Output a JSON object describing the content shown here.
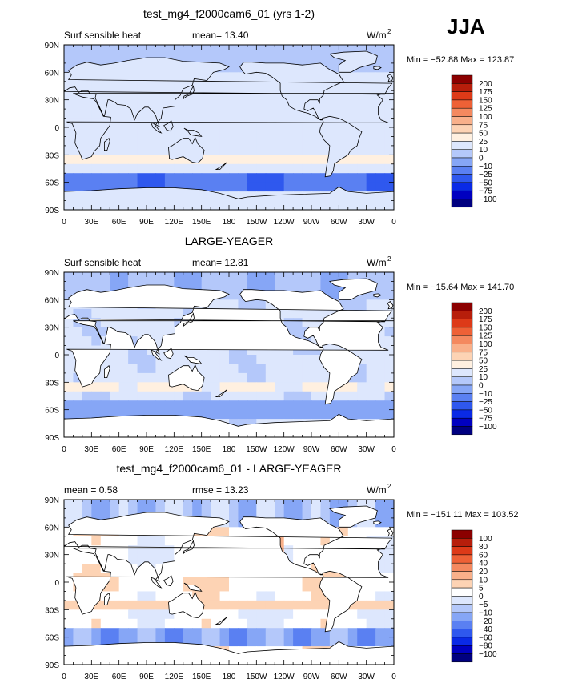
{
  "season": "JJA",
  "lon_ticks": [
    "0",
    "30E",
    "60E",
    "90E",
    "120E",
    "150E",
    "180",
    "150W",
    "120W",
    "90W",
    "60W",
    "30W",
    "0"
  ],
  "lat_ticks": [
    "90N",
    "60N",
    "30N",
    "0",
    "30S",
    "60S",
    "90S"
  ],
  "colors": {
    "abs": [
      "#000080",
      "#0000c0",
      "#0a2ae6",
      "#2f58ee",
      "#5a80f2",
      "#86a6f6",
      "#b4c8fa",
      "#dde7fd",
      "#fff0e0",
      "#fdd3b4",
      "#f9b08a",
      "#f4895f",
      "#ee6136",
      "#dd3a18",
      "#b71e0b",
      "#8b0000"
    ],
    "diff": [
      "#000080",
      "#0000c0",
      "#0a2ae6",
      "#2f58ee",
      "#5a80f2",
      "#86a6f6",
      "#b4c8fa",
      "#dde7fd",
      "#ffffff",
      "#fdd3b4",
      "#f9b08a",
      "#f4895f",
      "#ee6136",
      "#dd3a18",
      "#b71e0b",
      "#8b0000"
    ]
  },
  "chart_data": [
    {
      "type": "heatmap",
      "title": "test_mg4_f2000cam6_01 (yrs 1-2)",
      "left_label": "Surf sensible heat",
      "center_label": "mean=   13.40",
      "units_base": "W/m",
      "units_exp": "2",
      "minmax": "Min = −52.88 Max = 123.87",
      "legend_levels": [
        "200",
        "175",
        "150",
        "125",
        "100",
        "75",
        "50",
        "25",
        "10",
        "0",
        "−10",
        "−25",
        "−50",
        "−75",
        "−100"
      ],
      "palette": "abs",
      "xlim": [
        0,
        360
      ],
      "ylim": [
        -90,
        90
      ]
    },
    {
      "type": "heatmap",
      "title": "LARGE-YEAGER",
      "left_label": "Surf sensible heat",
      "center_label": "mean=   12.81",
      "units_base": "W/m",
      "units_exp": "2",
      "minmax": "Min = −15.64 Max = 141.70",
      "legend_levels": [
        "200",
        "175",
        "150",
        "125",
        "100",
        "75",
        "50",
        "25",
        "10",
        "0",
        "−10",
        "−25",
        "−50",
        "−75",
        "−100"
      ],
      "palette": "abs",
      "xlim": [
        0,
        360
      ],
      "ylim": [
        -90,
        90
      ]
    },
    {
      "type": "heatmap",
      "title": "test_mg4_f2000cam6_01 - LARGE-YEAGER",
      "left_label": "mean =    0.58",
      "center_label": "rmse =   13.23",
      "units_base": "W/m",
      "units_exp": "2",
      "minmax": "Min = −151.11 Max = 103.52",
      "legend_levels": [
        "100",
        "80",
        "60",
        "40",
        "20",
        "10",
        "5",
        "0",
        "−5",
        "−10",
        "−20",
        "−40",
        "−60",
        "−80",
        "−100"
      ],
      "palette": "diff",
      "xlim": [
        0,
        360
      ],
      "ylim": [
        -90,
        90
      ]
    }
  ]
}
